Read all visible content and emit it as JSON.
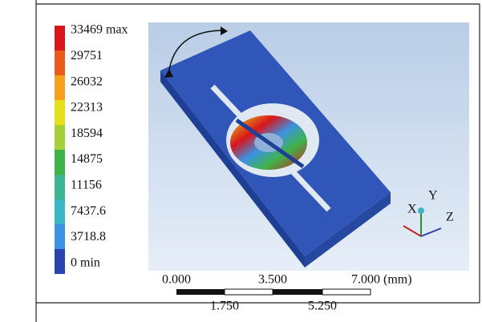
{
  "legend": {
    "labels": [
      "33469 max",
      "29751",
      "26032",
      "22313",
      "18594",
      "14875",
      "11156",
      "7437.6",
      "3718.8",
      "0 min"
    ],
    "colors": [
      "#d8161b",
      "#ea5a1a",
      "#f5a01e",
      "#e7df1c",
      "#a6d03a",
      "#3fb34a",
      "#3bb592",
      "#3ab6c6",
      "#3b92e2",
      "#2944b0"
    ]
  },
  "scale_bar": {
    "top_labels": [
      "0.000",
      "3.500",
      "7.000 (mm)"
    ],
    "bottom_labels": [
      "1.750",
      "5.250"
    ]
  },
  "triad": {
    "x": "X",
    "y": "Y",
    "z": "Z"
  }
}
